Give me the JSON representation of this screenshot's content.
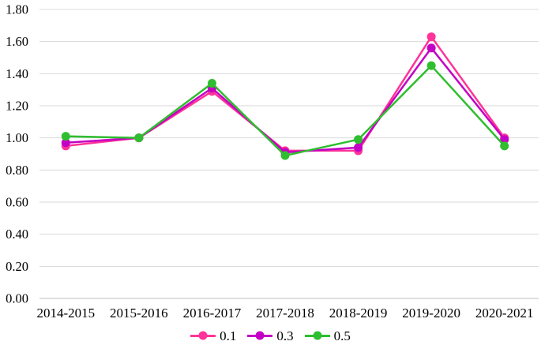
{
  "chart_data": {
    "type": "line",
    "title": "",
    "xlabel": "",
    "ylabel": "",
    "categories": [
      "2014-2015",
      "2015-2016",
      "2016-2017",
      "2017-2018",
      "2018-2019",
      "2019-2020",
      "2020-2021"
    ],
    "series": [
      {
        "name": "0.1",
        "color": "#FF3399",
        "values": [
          0.95,
          1.0,
          1.29,
          0.92,
          0.92,
          1.63,
          1.0
        ]
      },
      {
        "name": "0.3",
        "color": "#C400C4",
        "values": [
          0.97,
          1.0,
          1.31,
          0.91,
          0.94,
          1.56,
          0.99
        ]
      },
      {
        "name": "0.5",
        "color": "#2FBE2F",
        "values": [
          1.01,
          1.0,
          1.34,
          0.89,
          0.99,
          1.45,
          0.95
        ]
      }
    ],
    "y_ticks": [
      "0.00",
      "0.20",
      "0.40",
      "0.60",
      "0.80",
      "1.00",
      "1.20",
      "1.40",
      "1.60",
      "1.80"
    ],
    "ylim": [
      0,
      1.8
    ],
    "grid": true,
    "legend_position": "bottom",
    "colors": {
      "gridline": "#D9D9D9",
      "axis_line": "#BFBFBF",
      "text": "#000000",
      "background": "#FFFFFF"
    }
  }
}
